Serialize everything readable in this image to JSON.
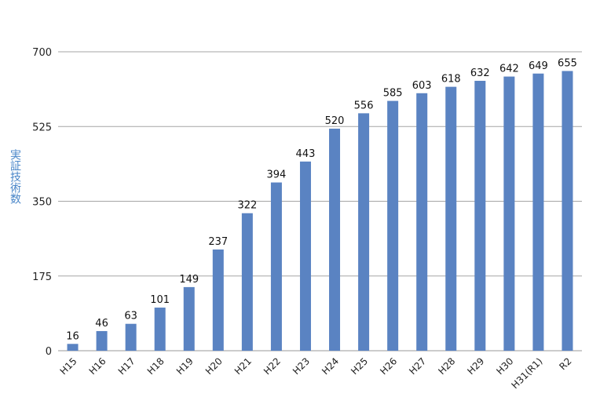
{
  "chart_data": {
    "type": "bar",
    "title": "",
    "xlabel": "",
    "ylabel": "実証技術数",
    "categories": [
      "H15",
      "H16",
      "H17",
      "H18",
      "H19",
      "H20",
      "H21",
      "H22",
      "H23",
      "H24",
      "H25",
      "H26",
      "H27",
      "H28",
      "H29",
      "H30",
      "H31(R1)",
      "R2"
    ],
    "values": [
      16,
      46,
      63,
      101,
      149,
      237,
      322,
      394,
      443,
      520,
      556,
      585,
      603,
      618,
      632,
      642,
      649,
      655
    ],
    "ylim": [
      0,
      700
    ],
    "yticks": [
      0,
      175,
      350,
      525,
      700
    ],
    "grid": true,
    "bar_color": "#5a83c2",
    "ylabel_color": "#4a86c8"
  }
}
